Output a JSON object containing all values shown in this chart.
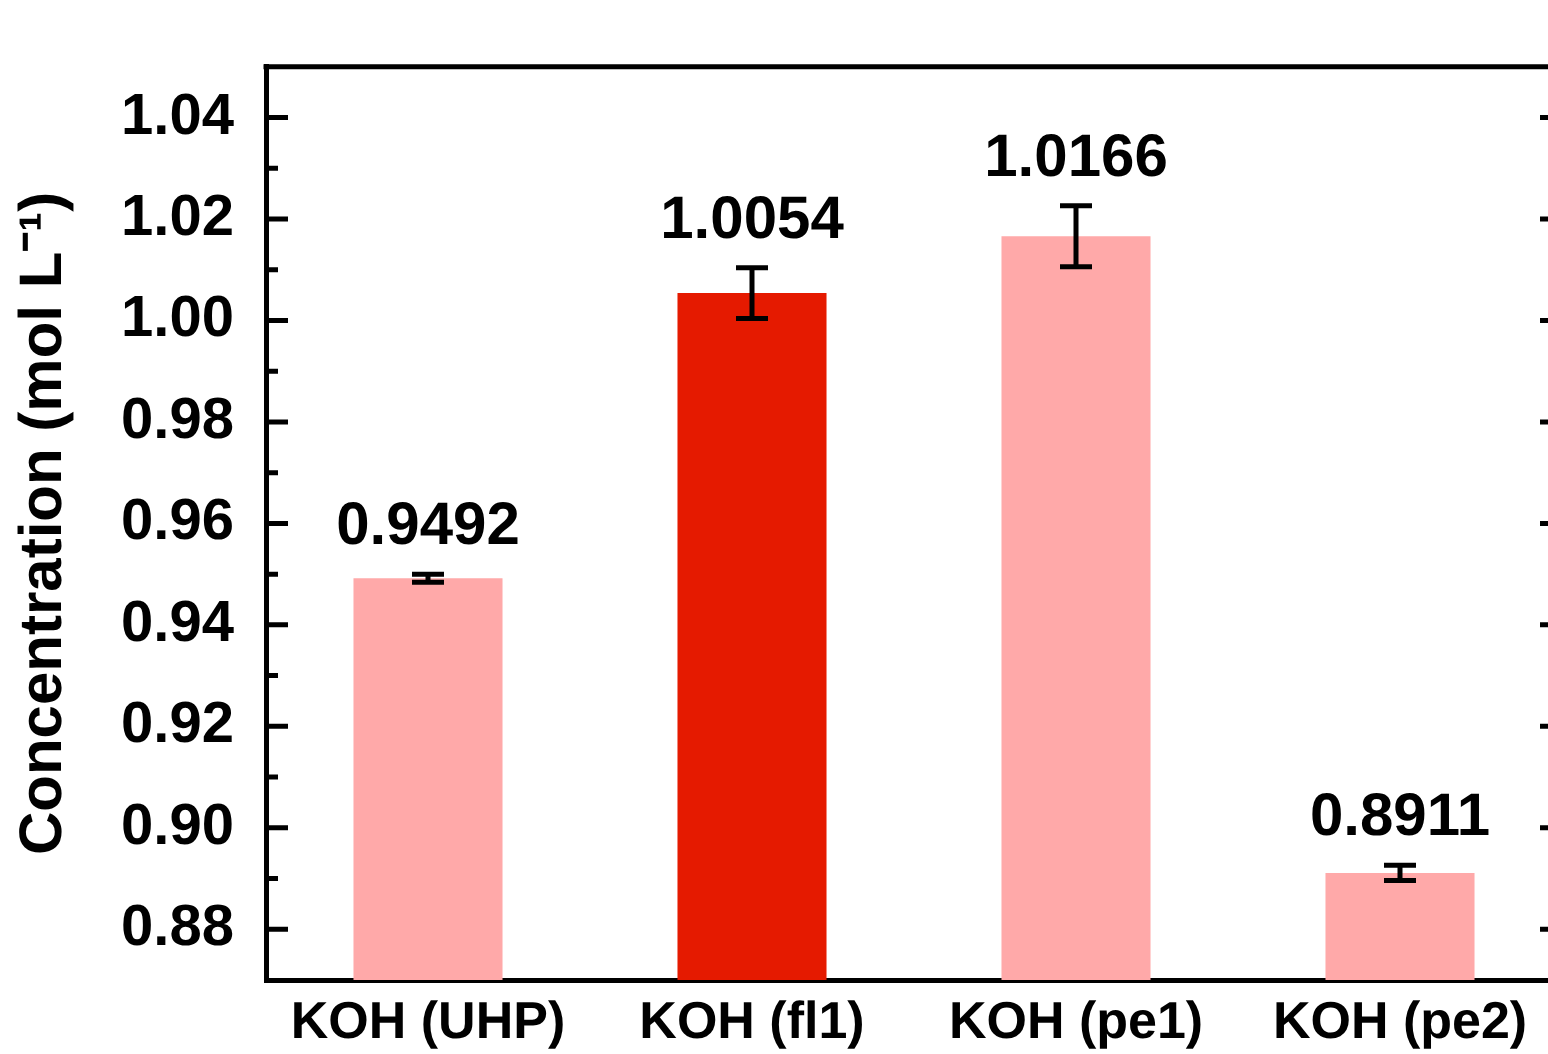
{
  "chart_data": {
    "type": "bar",
    "ylabel": "Concentration (mol L⁻¹)",
    "categories": [
      "KOH (UHP)",
      "KOH (fl1)",
      "KOH (pe1)",
      "KOH (pe2)"
    ],
    "values": [
      0.9492,
      1.0054,
      1.0166,
      0.8911
    ],
    "colors": [
      "#ffa9a9",
      "#e51a00",
      "#ffa9a9",
      "#ffa9a9"
    ],
    "errors": [
      0.0008,
      0.005,
      0.006,
      0.0015
    ],
    "data_labels": true,
    "ylim": [
      0.87,
      1.05
    ],
    "yticks": [
      0.88,
      {
        "value": 0.89,
        "label": null
      },
      {
        "value": 0.9,
        "label": "0.90"
      },
      {
        "value": 0.91,
        "label": null
      },
      0.92,
      {
        "value": 0.93,
        "label": null
      },
      0.94,
      {
        "value": 0.95,
        "label": null
      },
      0.96,
      {
        "value": 0.97,
        "label": null
      },
      0.98,
      {
        "value": 0.99,
        "label": null
      },
      {
        "value": 1,
        "label": "1.00"
      },
      {
        "value": 1.01,
        "label": null
      },
      1.02,
      {
        "value": 1.03,
        "label": null
      },
      1.04
    ]
  }
}
